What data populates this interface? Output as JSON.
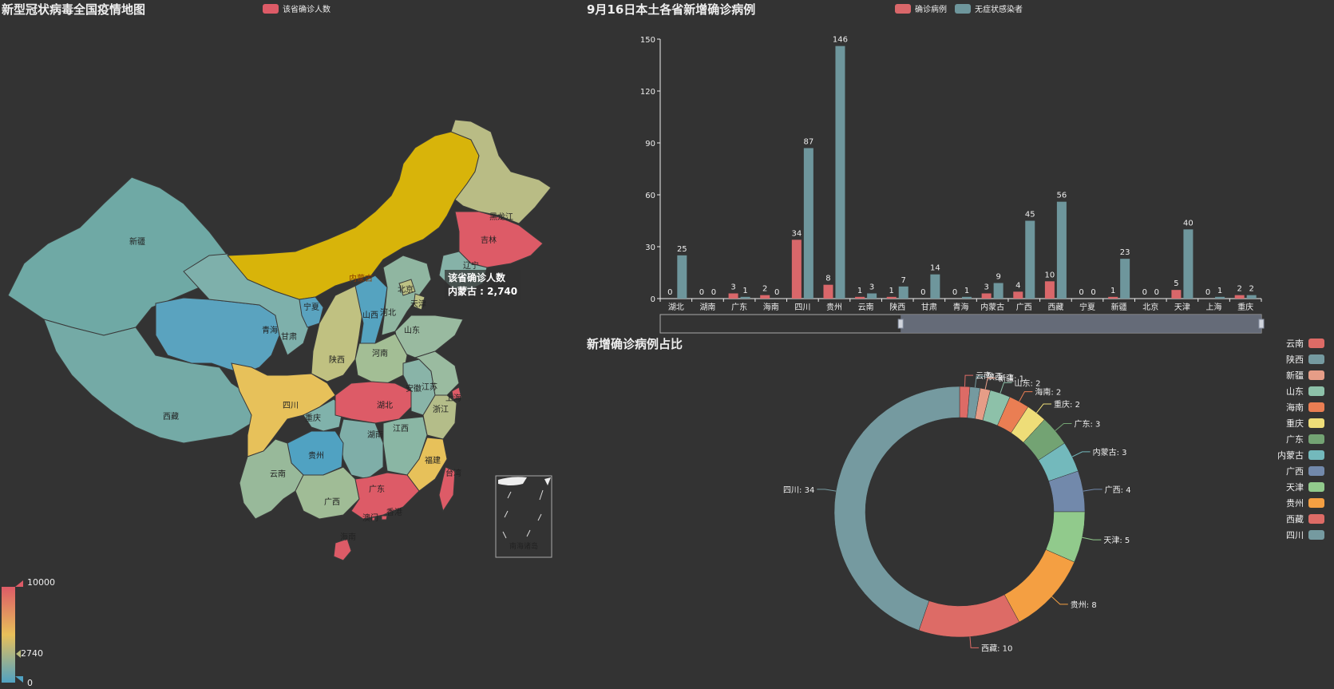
{
  "map": {
    "title": "新型冠状病毒全国疫情地图",
    "legend_label": "该省确诊人数",
    "legend_color": "#dd5b67",
    "tooltip": {
      "series": "该省确诊人数",
      "line": "内蒙古 : 2,740"
    },
    "visual_map": {
      "max_label": "10000",
      "current_label": "2740",
      "min_label": "0",
      "gradient": [
        "#dd5b67",
        "#e8c05a",
        "#50a2c2"
      ]
    },
    "province_labels": [
      "新疆",
      "西藏",
      "青海",
      "甘肃",
      "宁夏",
      "内蒙古",
      "黑龙江",
      "吉林",
      "辽宁",
      "北京",
      "天津",
      "河北",
      "山西",
      "山东",
      "河南",
      "陕西",
      "四川",
      "重庆",
      "湖北",
      "安徽",
      "江苏",
      "上海",
      "浙江",
      "湖南",
      "江西",
      "贵州",
      "云南",
      "广西",
      "广东",
      "福建",
      "台湾",
      "香港",
      "澳门",
      "海南"
    ],
    "inset_label": "南海诸岛"
  },
  "bar": {
    "title": "9月16日本土各省新增确诊病例",
    "legend": [
      {
        "name": "确诊病例",
        "color": "#d9676a"
      },
      {
        "name": "无症状感染者",
        "color": "#6e969c"
      }
    ]
  },
  "pie": {
    "title": "新增确诊病例占比"
  },
  "chart_data": [
    {
      "type": "bar",
      "title": "9月16日本土各省新增确诊病例",
      "categories": [
        "湖北",
        "湖南",
        "广东",
        "海南",
        "四川",
        "贵州",
        "云南",
        "陕西",
        "甘肃",
        "青海",
        "内蒙古",
        "广西",
        "西藏",
        "宁夏",
        "新疆",
        "北京",
        "天津",
        "上海",
        "重庆"
      ],
      "series": [
        {
          "name": "确诊病例",
          "color": "#d9676a",
          "values": [
            0,
            0,
            3,
            2,
            34,
            8,
            1,
            1,
            0,
            0,
            3,
            4,
            10,
            0,
            1,
            0,
            5,
            0,
            2
          ]
        },
        {
          "name": "无症状感染者",
          "color": "#6e969c",
          "values": [
            25,
            0,
            1,
            0,
            87,
            146,
            3,
            7,
            14,
            1,
            9,
            45,
            56,
            0,
            23,
            0,
            40,
            1,
            2
          ]
        }
      ],
      "y_ticks": [
        0,
        30,
        60,
        90,
        120,
        150
      ],
      "ylim": [
        0,
        150
      ],
      "datazoom_range": [
        40,
        100
      ]
    },
    {
      "type": "pie",
      "title": "新增确诊病例占比",
      "slices": [
        {
          "name": "云南",
          "value": 1,
          "color": "#dd6b66"
        },
        {
          "name": "陕西",
          "value": 1,
          "color": "#759aa0"
        },
        {
          "name": "新疆",
          "value": 1,
          "color": "#e69d87"
        },
        {
          "name": "山东",
          "value": 2,
          "color": "#8dc1a9"
        },
        {
          "name": "海南",
          "value": 2,
          "color": "#ea7e53"
        },
        {
          "name": "重庆",
          "value": 2,
          "color": "#eedd78"
        },
        {
          "name": "广东",
          "value": 3,
          "color": "#73a373"
        },
        {
          "name": "内蒙古",
          "value": 3,
          "color": "#73b9bc"
        },
        {
          "name": "广西",
          "value": 4,
          "color": "#7289ab"
        },
        {
          "name": "天津",
          "value": 5,
          "color": "#91ca8c"
        },
        {
          "name": "贵州",
          "value": 8,
          "color": "#f49f42"
        },
        {
          "name": "西藏",
          "value": 10,
          "color": "#dd6b66"
        },
        {
          "name": "四川",
          "value": 34,
          "color": "#759aa0"
        }
      ]
    }
  ]
}
